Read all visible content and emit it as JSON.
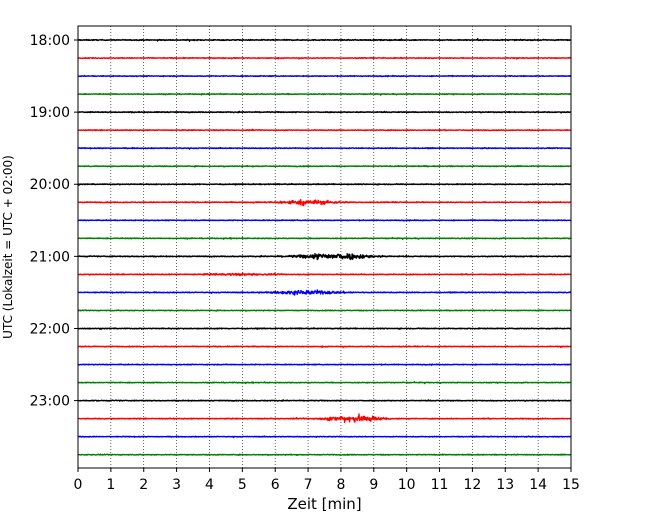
{
  "chart_data": {
    "type": "line",
    "title": "",
    "xlabel": "Zeit  [min]",
    "ylabel": "UTC (Lokalzeit = UTC + 02:00)",
    "xlim": [
      0,
      15
    ],
    "x_ticks": [
      "0",
      "1",
      "2",
      "3",
      "4",
      "5",
      "6",
      "7",
      "8",
      "9",
      "10",
      "11",
      "12",
      "13",
      "14",
      "15"
    ],
    "y_time_range_hours": [
      18.0,
      24.0
    ],
    "trace_interval_minutes": 15,
    "y_tick_labels": [
      "18:00",
      "19:00",
      "20:00",
      "21:00",
      "22:00",
      "23:00"
    ],
    "grid": "vertical dotted lines at each minute",
    "trace_colors_cycle": [
      "#000000",
      "#ff0000",
      "#0000ff",
      "#008000"
    ],
    "traces": [
      {
        "start": "18:00",
        "color": "#000000",
        "noise": 0.18,
        "events": []
      },
      {
        "start": "18:15",
        "color": "#ff0000",
        "noise": 0.15,
        "events": []
      },
      {
        "start": "18:30",
        "color": "#0000ff",
        "noise": 0.15,
        "events": []
      },
      {
        "start": "18:45",
        "color": "#008000",
        "noise": 0.15,
        "events": []
      },
      {
        "start": "19:00",
        "color": "#000000",
        "noise": 0.17,
        "events": []
      },
      {
        "start": "19:15",
        "color": "#ff0000",
        "noise": 0.15,
        "events": []
      },
      {
        "start": "19:30",
        "color": "#0000ff",
        "noise": 0.15,
        "events": []
      },
      {
        "start": "19:45",
        "color": "#008000",
        "noise": 0.16,
        "events": []
      },
      {
        "start": "20:00",
        "color": "#000000",
        "noise": 0.16,
        "events": []
      },
      {
        "start": "20:15",
        "color": "#ff0000",
        "noise": 0.16,
        "events": [
          {
            "center": 7.0,
            "width": 1.2,
            "amp": 0.9
          }
        ]
      },
      {
        "start": "20:30",
        "color": "#0000ff",
        "noise": 0.14,
        "events": []
      },
      {
        "start": "20:45",
        "color": "#008000",
        "noise": 0.15,
        "events": []
      },
      {
        "start": "21:00",
        "color": "#000000",
        "noise": 0.17,
        "events": [
          {
            "center": 7.8,
            "width": 1.5,
            "amp": 1.35
          }
        ]
      },
      {
        "start": "21:15",
        "color": "#ff0000",
        "noise": 0.16,
        "events": [
          {
            "center": 4.8,
            "width": 1.5,
            "amp": 0.3
          }
        ]
      },
      {
        "start": "21:30",
        "color": "#0000ff",
        "noise": 0.15,
        "events": [
          {
            "center": 7.0,
            "width": 1.5,
            "amp": 0.75
          }
        ]
      },
      {
        "start": "21:45",
        "color": "#008000",
        "noise": 0.14,
        "events": []
      },
      {
        "start": "22:00",
        "color": "#000000",
        "noise": 0.16,
        "events": []
      },
      {
        "start": "22:15",
        "color": "#ff0000",
        "noise": 0.15,
        "events": []
      },
      {
        "start": "22:30",
        "color": "#0000ff",
        "noise": 0.14,
        "events": []
      },
      {
        "start": "22:45",
        "color": "#008000",
        "noise": 0.14,
        "events": []
      },
      {
        "start": "23:00",
        "color": "#000000",
        "noise": 0.16,
        "events": []
      },
      {
        "start": "23:15",
        "color": "#ff0000",
        "noise": 0.16,
        "events": [
          {
            "center": 8.4,
            "width": 1.1,
            "amp": 1.5
          }
        ]
      },
      {
        "start": "23:30",
        "color": "#0000ff",
        "noise": 0.14,
        "events": []
      },
      {
        "start": "23:45",
        "color": "#008000",
        "noise": 0.15,
        "events": []
      }
    ]
  }
}
